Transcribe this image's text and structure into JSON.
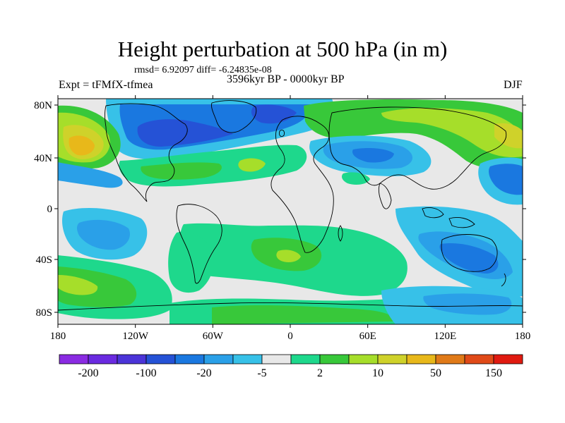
{
  "title": "Height perturbation at 500 hPa (in m)",
  "stats_text": "rmsd= 6.92097 diff= -6.24835e-08",
  "period": "3596kyr BP - 0000kyr BP",
  "experiment": "Expt = tFMfX-tfmea",
  "season": "DJF",
  "lat_labels": [
    "80N",
    "40N",
    "0",
    "40S",
    "80S"
  ],
  "lon_labels": [
    "180",
    "120W",
    "60W",
    "0",
    "60E",
    "120E",
    "180"
  ],
  "colorbar": {
    "colors": [
      "#8a2be2",
      "#6a2ae0",
      "#4b34d8",
      "#2552d6",
      "#1a78e0",
      "#2aa0e8",
      "#37c1e8",
      "#e8e8e8",
      "#1ed88c",
      "#38c83a",
      "#a6de2a",
      "#cfd22a",
      "#e8b81a",
      "#e07a18",
      "#e04a18",
      "#e01a10"
    ],
    "labels": [
      "-200",
      "-100",
      "-20",
      "-5",
      "2",
      "10",
      "50",
      "150"
    ]
  },
  "map_colors": {
    "neutral": "#e8e8e8",
    "blue_dark": "#2552d6",
    "blue_mid": "#1a78e0",
    "blue_light": "#2aa0e8",
    "cyan": "#37c1e8",
    "green_cyan": "#1ed88c",
    "green": "#38c83a",
    "yellow_green": "#a6de2a",
    "yellow": "#cfd22a",
    "orange": "#e8b81a"
  }
}
